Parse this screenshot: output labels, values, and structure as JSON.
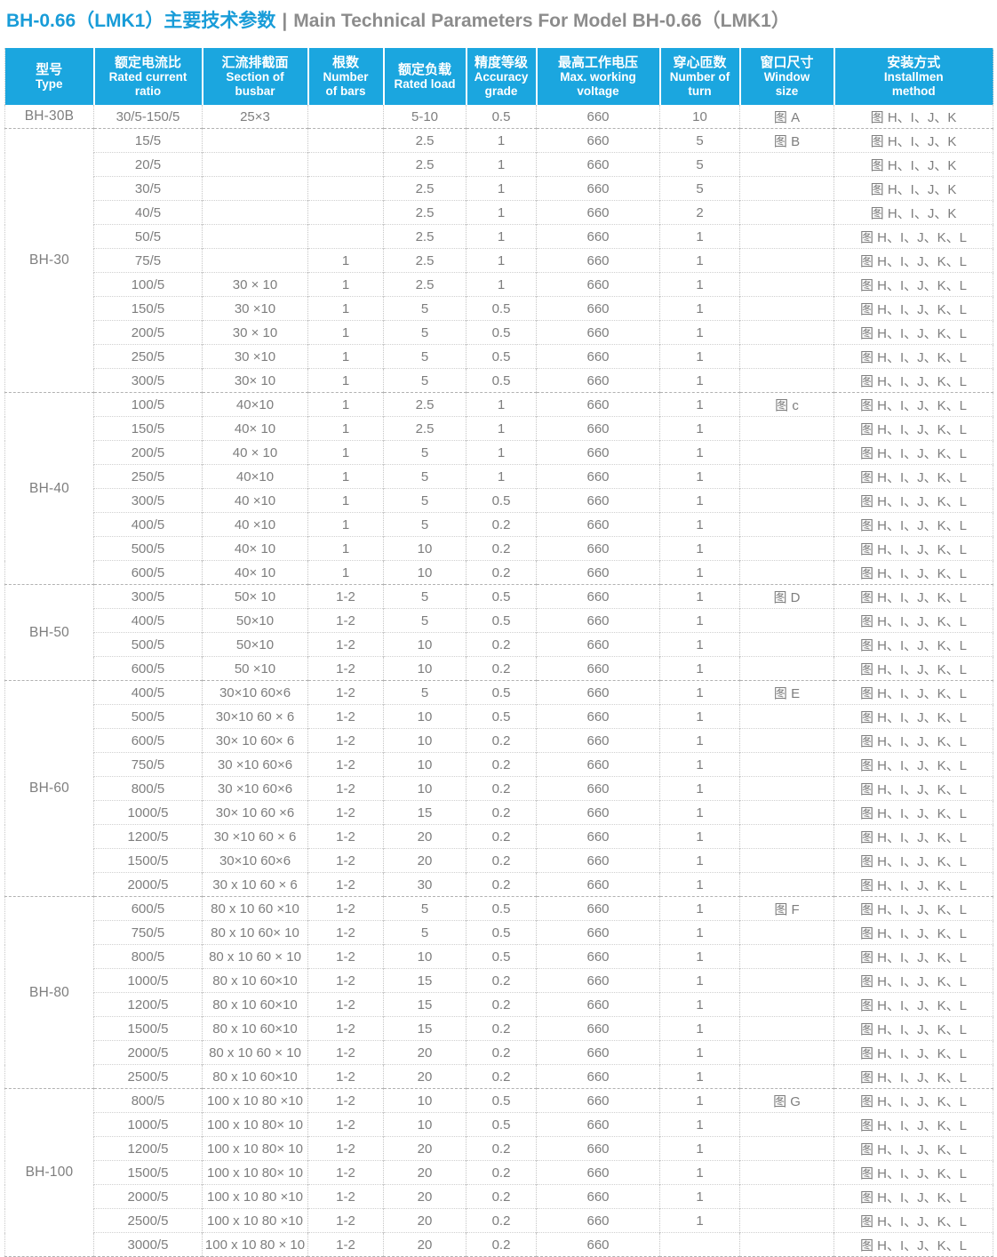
{
  "title": {
    "cn": "BH-0.66（LMK1）主要技术参数",
    "divider": "|",
    "en": "Main Technical Parameters For Model BH-0.66（LMK1）"
  },
  "colors": {
    "header_bg": "#1ba6df",
    "title_blue": "#189cd8",
    "title_gray": "#8c8c8c",
    "data_text": "#7e7e7e",
    "row_border": "#d0d0d0",
    "group_border": "#b2b2b2"
  },
  "table": {
    "row_keys": [
      "ratio",
      "busbar",
      "bars",
      "load",
      "accuracy",
      "voltage",
      "turns",
      "window",
      "install"
    ],
    "headers": [
      {
        "key": "type",
        "cn": "型号",
        "en": "Type"
      },
      {
        "key": "rated-current-ratio",
        "cn": "额定电流比",
        "en": "Rated current\nratio"
      },
      {
        "key": "section-of-busbar",
        "cn": "汇流排截面",
        "en": "Section of\nbusbar"
      },
      {
        "key": "number-of-bars",
        "cn": "根数",
        "en": "Number\nof bars"
      },
      {
        "key": "rated-load",
        "cn": "额定负载",
        "en": "Rated load"
      },
      {
        "key": "accuracy-grade",
        "cn": "精度等级",
        "en": "Accuracy\ngrade"
      },
      {
        "key": "max-working-voltage",
        "cn": "最高工作电压",
        "en": "Max. working\nvoltage"
      },
      {
        "key": "number-of-turn",
        "cn": "穿心匝数",
        "en": "Number of\nturn"
      },
      {
        "key": "window-size",
        "cn": "窗口尺寸",
        "en": "Window\nsize"
      },
      {
        "key": "installation-method",
        "cn": "安装方式",
        "en": "Installmen\nmethod"
      }
    ],
    "groups": [
      {
        "type": "BH-30B",
        "rows": [
          {
            "ratio": "30/5-150/5",
            "busbar": "25×3",
            "bars": "",
            "load": "5-10",
            "accuracy": "0.5",
            "voltage": "660",
            "turns": "10",
            "window": "图 A",
            "install": "图 H、I、J、K"
          }
        ]
      },
      {
        "type": "BH-30",
        "rows": [
          {
            "ratio": "15/5",
            "busbar": "",
            "bars": "",
            "load": "2.5",
            "accuracy": "1",
            "voltage": "660",
            "turns": "5",
            "window": "图 B",
            "install": "图 H、I、J、K"
          },
          {
            "ratio": "20/5",
            "busbar": "",
            "bars": "",
            "load": "2.5",
            "accuracy": "1",
            "voltage": "660",
            "turns": "5",
            "window": "",
            "install": "图 H、I、J、K"
          },
          {
            "ratio": "30/5",
            "busbar": "",
            "bars": "",
            "load": "2.5",
            "accuracy": "1",
            "voltage": "660",
            "turns": "5",
            "window": "",
            "install": "图 H、I、J、K"
          },
          {
            "ratio": "40/5",
            "busbar": "",
            "bars": "",
            "load": "2.5",
            "accuracy": "1",
            "voltage": "660",
            "turns": "2",
            "window": "",
            "install": "图 H、I、J、K"
          },
          {
            "ratio": "50/5",
            "busbar": "",
            "bars": "",
            "load": "2.5",
            "accuracy": "1",
            "voltage": "660",
            "turns": "1",
            "window": "",
            "install": "图 H、I、J、K、L"
          },
          {
            "ratio": "75/5",
            "busbar": "",
            "bars": "1",
            "load": "2.5",
            "accuracy": "1",
            "voltage": "660",
            "turns": "1",
            "window": "",
            "install": "图 H、I、J、K、L"
          },
          {
            "ratio": "100/5",
            "busbar": "30 × 10",
            "bars": "1",
            "load": "2.5",
            "accuracy": "1",
            "voltage": "660",
            "turns": "1",
            "window": "",
            "install": "图 H、I、J、K、L"
          },
          {
            "ratio": "150/5",
            "busbar": "30 ×10",
            "bars": "1",
            "load": "5",
            "accuracy": "0.5",
            "voltage": "660",
            "turns": "1",
            "window": "",
            "install": "图 H、I、J、K、L"
          },
          {
            "ratio": "200/5",
            "busbar": "30 × 10",
            "bars": "1",
            "load": "5",
            "accuracy": "0.5",
            "voltage": "660",
            "turns": "1",
            "window": "",
            "install": "图 H、I、J、K、L"
          },
          {
            "ratio": "250/5",
            "busbar": "30 ×10",
            "bars": "1",
            "load": "5",
            "accuracy": "0.5",
            "voltage": "660",
            "turns": "1",
            "window": "",
            "install": "图 H、I、J、K、L"
          },
          {
            "ratio": "300/5",
            "busbar": "30× 10",
            "bars": "1",
            "load": "5",
            "accuracy": "0.5",
            "voltage": "660",
            "turns": "1",
            "window": "",
            "install": "图 H、I、J、K、L"
          }
        ]
      },
      {
        "type": "BH-40",
        "rows": [
          {
            "ratio": "100/5",
            "busbar": "40×10",
            "bars": "1",
            "load": "2.5",
            "accuracy": "1",
            "voltage": "660",
            "turns": "1",
            "window": "图 c",
            "install": "图 H、I、J、K、L"
          },
          {
            "ratio": "150/5",
            "busbar": "40× 10",
            "bars": "1",
            "load": "2.5",
            "accuracy": "1",
            "voltage": "660",
            "turns": "1",
            "window": "",
            "install": "图 H、I、J、K、L"
          },
          {
            "ratio": "200/5",
            "busbar": "40 × 10",
            "bars": "1",
            "load": "5",
            "accuracy": "1",
            "voltage": "660",
            "turns": "1",
            "window": "",
            "install": "图 H、I、J、K、L"
          },
          {
            "ratio": "250/5",
            "busbar": "40×10",
            "bars": "1",
            "load": "5",
            "accuracy": "1",
            "voltage": "660",
            "turns": "1",
            "window": "",
            "install": "图 H、I、J、K、L"
          },
          {
            "ratio": "300/5",
            "busbar": "40 ×10",
            "bars": "1",
            "load": "5",
            "accuracy": "0.5",
            "voltage": "660",
            "turns": "1",
            "window": "",
            "install": "图 H、I、J、K、L"
          },
          {
            "ratio": "400/5",
            "busbar": "40 ×10",
            "bars": "1",
            "load": "5",
            "accuracy": "0.2",
            "voltage": "660",
            "turns": "1",
            "window": "",
            "install": "图 H、I、J、K、L"
          },
          {
            "ratio": "500/5",
            "busbar": "40× 10",
            "bars": "1",
            "load": "10",
            "accuracy": "0.2",
            "voltage": "660",
            "turns": "1",
            "window": "",
            "install": "图 H、I、J、K、L"
          },
          {
            "ratio": "600/5",
            "busbar": "40× 10",
            "bars": "1",
            "load": "10",
            "accuracy": "0.2",
            "voltage": "660",
            "turns": "1",
            "window": "",
            "install": "图 H、I、J、K、L"
          }
        ]
      },
      {
        "type": "BH-50",
        "rows": [
          {
            "ratio": "300/5",
            "busbar": "50× 10",
            "bars": "1-2",
            "load": "5",
            "accuracy": "0.5",
            "voltage": "660",
            "turns": "1",
            "window": "图 D",
            "install": "图 H、I、J、K、L"
          },
          {
            "ratio": "400/5",
            "busbar": "50×10",
            "bars": "1-2",
            "load": "5",
            "accuracy": "0.5",
            "voltage": "660",
            "turns": "1",
            "window": "",
            "install": "图 H、I、J、K、L"
          },
          {
            "ratio": "500/5",
            "busbar": "50×10",
            "bars": "1-2",
            "load": "10",
            "accuracy": "0.2",
            "voltage": "660",
            "turns": "1",
            "window": "",
            "install": "图 H、I、J、K、L"
          },
          {
            "ratio": "600/5",
            "busbar": "50 ×10",
            "bars": "1-2",
            "load": "10",
            "accuracy": "0.2",
            "voltage": "660",
            "turns": "1",
            "window": "",
            "install": "图 H、I、J、K、L"
          }
        ]
      },
      {
        "type": "BH-60",
        "rows": [
          {
            "ratio": "400/5",
            "busbar": "30×10 60×6",
            "bars": "1-2",
            "load": "5",
            "accuracy": "0.5",
            "voltage": "660",
            "turns": "1",
            "window": "图 E",
            "install": "图 H、I、J、K、L"
          },
          {
            "ratio": "500/5",
            "busbar": "30×10 60 × 6",
            "bars": "1-2",
            "load": "10",
            "accuracy": "0.5",
            "voltage": "660",
            "turns": "1",
            "window": "",
            "install": "图 H、I、J、K、L"
          },
          {
            "ratio": "600/5",
            "busbar": "30× 10 60× 6",
            "bars": "1-2",
            "load": "10",
            "accuracy": "0.2",
            "voltage": "660",
            "turns": "1",
            "window": "",
            "install": "图 H、I、J、K、L"
          },
          {
            "ratio": "750/5",
            "busbar": "30 ×10 60×6",
            "bars": "1-2",
            "load": "10",
            "accuracy": "0.2",
            "voltage": "660",
            "turns": "1",
            "window": "",
            "install": "图 H、I、J、K、L"
          },
          {
            "ratio": "800/5",
            "busbar": "30 ×10 60×6",
            "bars": "1-2",
            "load": "10",
            "accuracy": "0.2",
            "voltage": "660",
            "turns": "1",
            "window": "",
            "install": "图 H、I、J、K、L"
          },
          {
            "ratio": "1000/5",
            "busbar": "30× 10 60 ×6",
            "bars": "1-2",
            "load": "15",
            "accuracy": "0.2",
            "voltage": "660",
            "turns": "1",
            "window": "",
            "install": "图 H、I、J、K、L"
          },
          {
            "ratio": "1200/5",
            "busbar": "30 ×10 60 × 6",
            "bars": "1-2",
            "load": "20",
            "accuracy": "0.2",
            "voltage": "660",
            "turns": "1",
            "window": "",
            "install": "图 H、I、J、K、L"
          },
          {
            "ratio": "1500/5",
            "busbar": "30×10 60×6",
            "bars": "1-2",
            "load": "20",
            "accuracy": "0.2",
            "voltage": "660",
            "turns": "1",
            "window": "",
            "install": "图 H、I、J、K、L"
          },
          {
            "ratio": "2000/5",
            "busbar": "30 x 10 60 × 6",
            "bars": "1-2",
            "load": "30",
            "accuracy": "0.2",
            "voltage": "660",
            "turns": "1",
            "window": "",
            "install": "图 H、I、J、K、L"
          }
        ]
      },
      {
        "type": "BH-80",
        "rows": [
          {
            "ratio": "600/5",
            "busbar": "80 x 10 60 ×10",
            "bars": "1-2",
            "load": "5",
            "accuracy": "0.5",
            "voltage": "660",
            "turns": "1",
            "window": "图 F",
            "install": "图 H、I、J、K、L"
          },
          {
            "ratio": "750/5",
            "busbar": "80 x 10 60× 10",
            "bars": "1-2",
            "load": "5",
            "accuracy": "0.5",
            "voltage": "660",
            "turns": "1",
            "window": "",
            "install": "图 H、I、J、K、L"
          },
          {
            "ratio": "800/5",
            "busbar": "80 x 10 60 × 10",
            "bars": "1-2",
            "load": "10",
            "accuracy": "0.5",
            "voltage": "660",
            "turns": "1",
            "window": "",
            "install": "图 H、I、J、K、L"
          },
          {
            "ratio": "1000/5",
            "busbar": "80 x 10 60×10",
            "bars": "1-2",
            "load": "15",
            "accuracy": "0.2",
            "voltage": "660",
            "turns": "1",
            "window": "",
            "install": "图 H、I、J、K、L"
          },
          {
            "ratio": "1200/5",
            "busbar": "80 x 10 60×10",
            "bars": "1-2",
            "load": "15",
            "accuracy": "0.2",
            "voltage": "660",
            "turns": "1",
            "window": "",
            "install": "图 H、I、J、K、L"
          },
          {
            "ratio": "1500/5",
            "busbar": "80 x 10 60×10",
            "bars": "1-2",
            "load": "15",
            "accuracy": "0.2",
            "voltage": "660",
            "turns": "1",
            "window": "",
            "install": "图 H、I、J、K、L"
          },
          {
            "ratio": "2000/5",
            "busbar": "80 x 10 60 × 10",
            "bars": "1-2",
            "load": "20",
            "accuracy": "0.2",
            "voltage": "660",
            "turns": "1",
            "window": "",
            "install": "图 H、I、J、K、L"
          },
          {
            "ratio": "2500/5",
            "busbar": "80 x 10 60×10",
            "bars": "1-2",
            "load": "20",
            "accuracy": "0.2",
            "voltage": "660",
            "turns": "1",
            "window": "",
            "install": "图 H、I、J、K、L"
          }
        ]
      },
      {
        "type": "BH-100",
        "rows": [
          {
            "ratio": "800/5",
            "busbar": "100 x 10 80 ×10",
            "bars": "1-2",
            "load": "10",
            "accuracy": "0.5",
            "voltage": "660",
            "turns": "1",
            "window": "图 G",
            "install": "图 H、I、J、K、L"
          },
          {
            "ratio": "1000/5",
            "busbar": "100 x 10 80× 10",
            "bars": "1-2",
            "load": "10",
            "accuracy": "0.5",
            "voltage": "660",
            "turns": "1",
            "window": "",
            "install": "图 H、I、J、K、L"
          },
          {
            "ratio": "1200/5",
            "busbar": "100 x 10 80× 10",
            "bars": "1-2",
            "load": "20",
            "accuracy": "0.2",
            "voltage": "660",
            "turns": "1",
            "window": "",
            "install": "图 H、I、J、K、L"
          },
          {
            "ratio": "1500/5",
            "busbar": "100 x 10 80× 10",
            "bars": "1-2",
            "load": "20",
            "accuracy": "0.2",
            "voltage": "660",
            "turns": "1",
            "window": "",
            "install": "图 H、I、J、K、L"
          },
          {
            "ratio": "2000/5",
            "busbar": "100 x 10 80 ×10",
            "bars": "1-2",
            "load": "20",
            "accuracy": "0.2",
            "voltage": "660",
            "turns": "1",
            "window": "",
            "install": "图 H、I、J、K、L"
          },
          {
            "ratio": "2500/5",
            "busbar": "100 x 10 80 ×10",
            "bars": "1-2",
            "load": "20",
            "accuracy": "0.2",
            "voltage": "660",
            "turns": "1",
            "window": "",
            "install": "图 H、I、J、K、L"
          },
          {
            "ratio": "3000/5",
            "busbar": "100 x 10 80 × 10",
            "bars": "1-2",
            "load": "20",
            "accuracy": "0.2",
            "voltage": "660",
            "turns": "",
            "window": "",
            "install": "图 H、I、J、K、L"
          }
        ]
      }
    ]
  }
}
